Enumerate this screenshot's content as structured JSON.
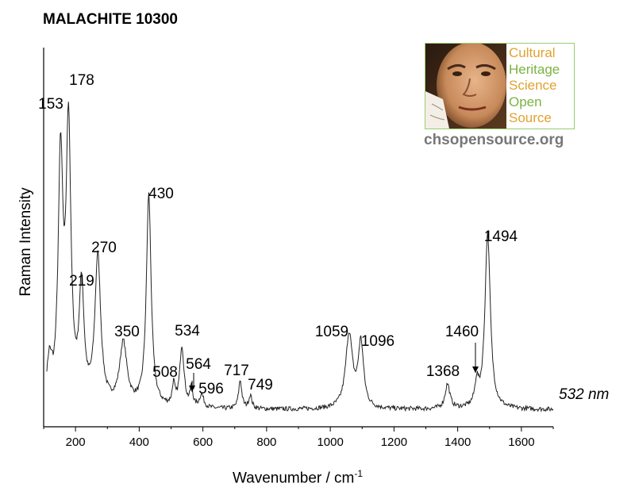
{
  "chart_data": {
    "type": "line",
    "title": "MALACHITE 10300",
    "xlabel": "Wavenumber / cm",
    "xlabel_superscript": "-1",
    "ylabel": "Raman Intensity",
    "xlim": [
      100,
      1700
    ],
    "ylim": [
      0,
      1.0
    ],
    "xticks": [
      200,
      400,
      600,
      800,
      1000,
      1200,
      1400,
      1600
    ],
    "x_minor_step": 100,
    "y_ticks_shown": false,
    "grid": false,
    "laser_label": "532 nm",
    "series": [
      {
        "peaks": [
          {
            "x": 118,
            "height": 0.085,
            "width": 8
          },
          {
            "x": 153,
            "height": 0.64,
            "width": 9
          },
          {
            "x": 178,
            "height": 0.72,
            "width": 9
          },
          {
            "x": 219,
            "height": 0.3,
            "width": 9
          },
          {
            "x": 270,
            "height": 0.39,
            "width": 11
          },
          {
            "x": 350,
            "height": 0.165,
            "width": 14
          },
          {
            "x": 430,
            "height": 0.56,
            "width": 9
          },
          {
            "x": 508,
            "height": 0.055,
            "width": 5
          },
          {
            "x": 534,
            "height": 0.16,
            "width": 8
          },
          {
            "x": 564,
            "height": 0.05,
            "width": 5
          },
          {
            "x": 596,
            "height": 0.035,
            "width": 8
          },
          {
            "x": 717,
            "height": 0.075,
            "width": 6
          },
          {
            "x": 749,
            "height": 0.035,
            "width": 6
          },
          {
            "x": 1059,
            "height": 0.195,
            "width": 13
          },
          {
            "x": 1096,
            "height": 0.17,
            "width": 10
          },
          {
            "x": 1368,
            "height": 0.065,
            "width": 9
          },
          {
            "x": 1460,
            "height": 0.06,
            "width": 7
          },
          {
            "x": 1494,
            "height": 0.465,
            "width": 10
          }
        ],
        "baseline": 0.045,
        "noise": 0.006
      }
    ],
    "annotations": [
      {
        "text": "153",
        "x": 153
      },
      {
        "text": "178",
        "x": 178
      },
      {
        "text": "219",
        "x": 219
      },
      {
        "text": "270",
        "x": 270
      },
      {
        "text": "350",
        "x": 350
      },
      {
        "text": "430",
        "x": 430
      },
      {
        "text": "508",
        "x": 508
      },
      {
        "text": "534",
        "x": 534
      },
      {
        "text": "564",
        "x": 564
      },
      {
        "text": "596",
        "x": 596
      },
      {
        "text": "717",
        "x": 717
      },
      {
        "text": "749",
        "x": 749
      },
      {
        "text": "1059",
        "x": 1059
      },
      {
        "text": "1096",
        "x": 1096
      },
      {
        "text": "1368",
        "x": 1368
      },
      {
        "text": "1460",
        "x": 1460
      },
      {
        "text": "1494",
        "x": 1494
      }
    ]
  },
  "logo": {
    "lines": [
      "Cultural",
      "Heritage",
      "Science",
      "Open",
      "Source"
    ],
    "url": "chsopensource.org",
    "colors": {
      "orange": "#e0a230",
      "green": "#7cb342",
      "border": "#9acb6f",
      "url": "#777777"
    }
  }
}
